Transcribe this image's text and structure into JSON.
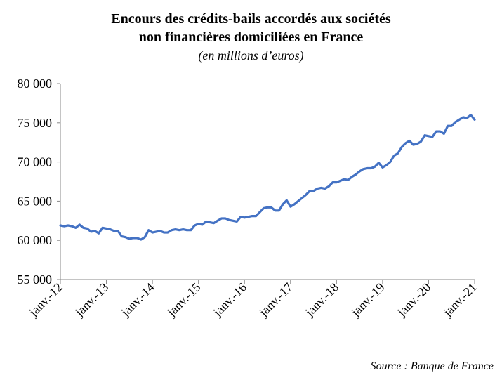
{
  "chart_data": {
    "type": "line",
    "title_line1": "Encours des crédits-bails accordés aux sociétés",
    "title_line2": "non financières domiciliées en France",
    "subtitle": "(en millions d’euros)",
    "source": "Source : Banque de France",
    "xlabel": "",
    "ylabel": "",
    "ylim": [
      55000,
      80000
    ],
    "yticks": [
      55000,
      60000,
      65000,
      70000,
      75000,
      80000
    ],
    "ytick_labels": [
      "55 000",
      "60 000",
      "65 000",
      "70 000",
      "75 000",
      "80 000"
    ],
    "xtick_labels": [
      "janv.-12",
      "janv.-13",
      "janv.-14",
      "janv.-15",
      "janv.-16",
      "janv.-17",
      "janv.-18",
      "janv.-19",
      "janv.-20",
      "janv.-21"
    ],
    "line_color": "#4472C4",
    "series": [
      {
        "name": "Encours",
        "start": "janv.-12",
        "frequency": "monthly",
        "values": [
          61900,
          61800,
          61900,
          61800,
          61600,
          62000,
          61600,
          61500,
          61100,
          61200,
          60900,
          61600,
          61500,
          61400,
          61200,
          61200,
          60500,
          60400,
          60200,
          60300,
          60300,
          60100,
          60400,
          61300,
          61000,
          61100,
          61200,
          61000,
          61000,
          61300,
          61400,
          61300,
          61400,
          61300,
          61300,
          61900,
          62100,
          62000,
          62400,
          62300,
          62200,
          62500,
          62800,
          62800,
          62600,
          62500,
          62400,
          63000,
          62900,
          63000,
          63100,
          63100,
          63600,
          64100,
          64200,
          64200,
          63800,
          63800,
          64600,
          65100,
          64300,
          64600,
          65000,
          65400,
          65800,
          66300,
          66300,
          66600,
          66700,
          66600,
          66900,
          67400,
          67400,
          67600,
          67800,
          67700,
          68100,
          68400,
          68800,
          69100,
          69200,
          69200,
          69400,
          69900,
          69300,
          69600,
          70000,
          70800,
          71100,
          71900,
          72400,
          72700,
          72200,
          72300,
          72600,
          73400,
          73300,
          73200,
          73900,
          73900,
          73600,
          74600,
          74600,
          75100,
          75400,
          75700,
          75600,
          76000,
          75400
        ]
      }
    ]
  }
}
